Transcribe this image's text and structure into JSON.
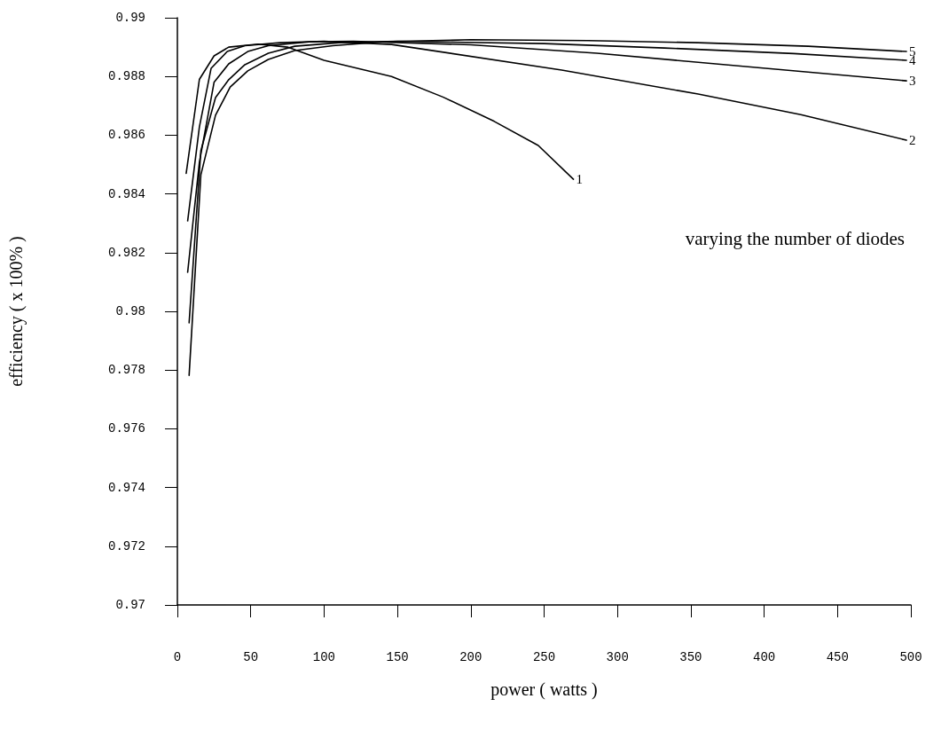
{
  "chart_data": {
    "type": "line",
    "xlabel": "power ( watts )",
    "ylabel": "efficiency ( x 100% )",
    "annotations": [
      "varying the number of diodes"
    ],
    "series": [
      {
        "name": "1",
        "color": "#000000",
        "x": [
          6,
          15,
          25,
          35,
          55,
          75,
          100,
          146,
          181,
          216,
          246,
          270
        ],
        "values": [
          0.9847,
          0.9879,
          0.9887,
          0.989,
          0.9891,
          0.989,
          0.98855,
          0.988,
          0.9873,
          0.98647,
          0.98565,
          0.9845
        ]
      },
      {
        "name": "2",
        "color": "#000000",
        "x": [
          7,
          15,
          23,
          34,
          46,
          70,
          100,
          146,
          262,
          355,
          425,
          497
        ],
        "values": [
          0.98308,
          0.98628,
          0.98828,
          0.98885,
          0.98905,
          0.98915,
          0.9892,
          0.98909,
          0.98822,
          0.9874,
          0.9867,
          0.98583
        ]
      },
      {
        "name": "3",
        "color": "#000000",
        "x": [
          7,
          15,
          25,
          35,
          48,
          62,
          90,
          120,
          200,
          286,
          401,
          497
        ],
        "values": [
          0.98133,
          0.98508,
          0.9878,
          0.98843,
          0.98885,
          0.98905,
          0.98918,
          0.9892,
          0.98908,
          0.98879,
          0.98828,
          0.98785
        ]
      },
      {
        "name": "4",
        "color": "#000000",
        "x": [
          8,
          16,
          26,
          35,
          46,
          62,
          80,
          110,
          150,
          250,
          332,
          420,
          497
        ],
        "values": [
          0.97961,
          0.98547,
          0.98728,
          0.98789,
          0.9884,
          0.98879,
          0.98903,
          0.98915,
          0.9892,
          0.98912,
          0.98897,
          0.98878,
          0.98855
        ]
      },
      {
        "name": "5",
        "color": "#000000",
        "x": [
          8,
          16,
          26,
          36,
          48,
          62,
          80,
          106,
          140,
          200,
          280,
          355,
          430,
          497
        ],
        "values": [
          0.97782,
          0.98465,
          0.98668,
          0.98764,
          0.98819,
          0.98858,
          0.98888,
          0.98905,
          0.98918,
          0.98925,
          0.98922,
          0.98915,
          0.98903,
          0.98885
        ]
      }
    ],
    "xlim": [
      0,
      500
    ],
    "xticks": [
      0,
      50,
      100,
      150,
      200,
      250,
      300,
      350,
      400,
      450,
      500
    ],
    "ylim": [
      0.97,
      0.99
    ],
    "yticks": [
      0.97,
      0.972,
      0.974,
      0.976,
      0.978,
      0.98,
      0.982,
      0.984,
      0.986,
      0.988,
      0.99
    ],
    "grid": false,
    "legend": false,
    "marker": "none",
    "line_style": "solid"
  }
}
